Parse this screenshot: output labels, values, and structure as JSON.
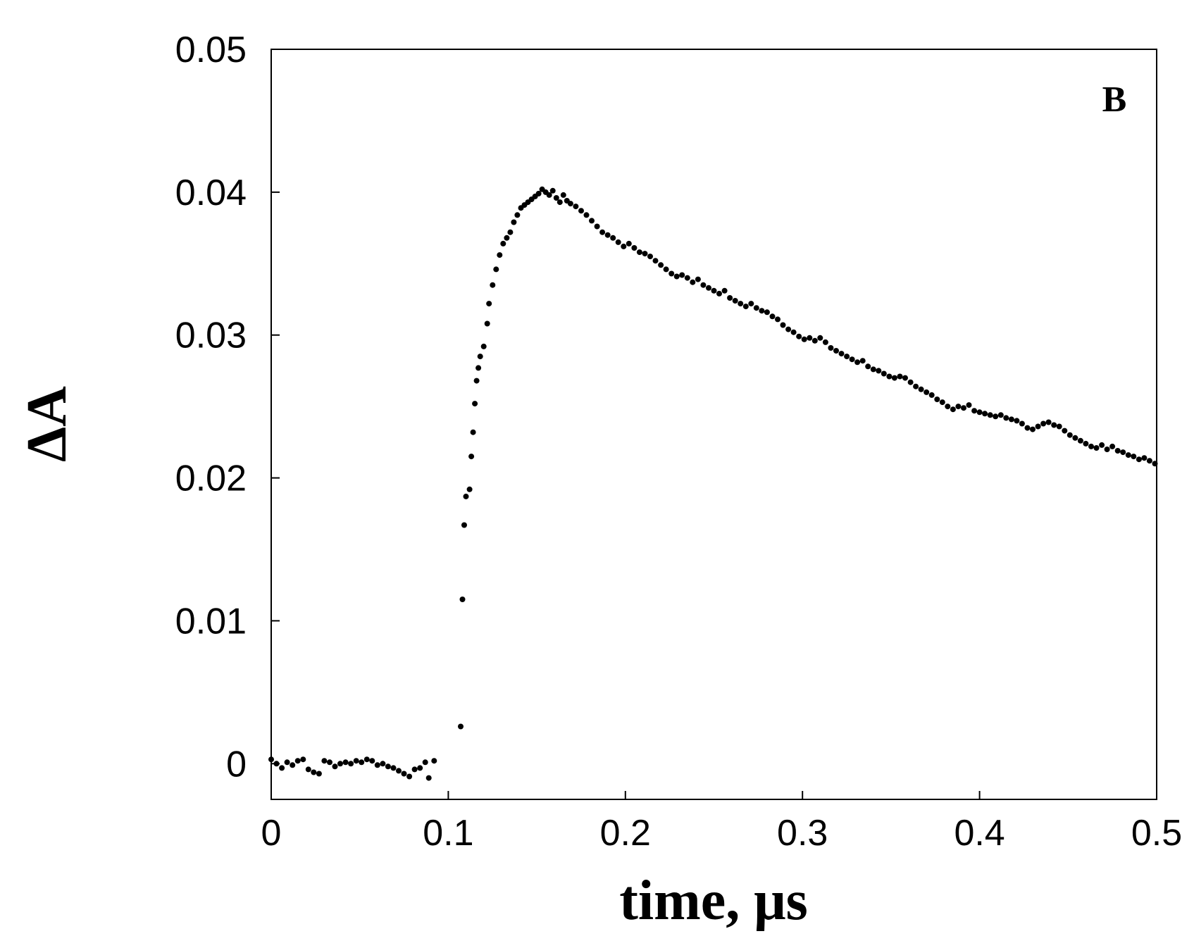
{
  "chart_data": {
    "type": "scatter",
    "title": "",
    "panel_label": "B",
    "xlabel": "time, μs",
    "ylabel": "ΔA",
    "xlim": [
      0,
      0.5
    ],
    "ylim": [
      -0.0025,
      0.05
    ],
    "x_ticks": [
      0,
      0.1,
      0.2,
      0.3,
      0.4,
      0.5
    ],
    "x_tick_labels": [
      "0",
      "0.1",
      "0.2",
      "0.3",
      "0.4",
      "0.5"
    ],
    "y_ticks": [
      0,
      0.01,
      0.02,
      0.03,
      0.04,
      0.05
    ],
    "y_tick_labels": [
      "0",
      "0.01",
      "0.02",
      "0.03",
      "0.04",
      "0.05"
    ],
    "grid": false,
    "legend": "none",
    "marker_color": "#000000",
    "series": [
      {
        "points": [
          [
            0.0,
            0.0003
          ],
          [
            0.003,
            0.0
          ],
          [
            0.006,
            -0.0003
          ],
          [
            0.009,
            0.0001
          ],
          [
            0.012,
            -0.0001
          ],
          [
            0.015,
            0.0002
          ],
          [
            0.018,
            0.0003
          ],
          [
            0.021,
            -0.0004
          ],
          [
            0.024,
            -0.0006
          ],
          [
            0.027,
            -0.0007
          ],
          [
            0.03,
            0.0002
          ],
          [
            0.033,
            0.0001
          ],
          [
            0.036,
            -0.0002
          ],
          [
            0.039,
            0.0
          ],
          [
            0.042,
            0.0001
          ],
          [
            0.045,
            0.0
          ],
          [
            0.048,
            0.0002
          ],
          [
            0.051,
            0.0001
          ],
          [
            0.054,
            0.0003
          ],
          [
            0.057,
            0.0002
          ],
          [
            0.06,
            -0.0001
          ],
          [
            0.063,
            0.0
          ],
          [
            0.066,
            -0.0002
          ],
          [
            0.069,
            -0.0003
          ],
          [
            0.072,
            -0.0005
          ],
          [
            0.075,
            -0.0007
          ],
          [
            0.078,
            -0.0009
          ],
          [
            0.081,
            -0.0004
          ],
          [
            0.084,
            -0.0003
          ],
          [
            0.087,
            0.0001
          ],
          [
            0.089,
            -0.001
          ],
          [
            0.092,
            0.0002
          ],
          [
            0.107,
            0.0026
          ],
          [
            0.108,
            0.0115
          ],
          [
            0.109,
            0.0167
          ],
          [
            0.11,
            0.0187
          ],
          [
            0.112,
            0.0192
          ],
          [
            0.113,
            0.0215
          ],
          [
            0.114,
            0.0232
          ],
          [
            0.115,
            0.0252
          ],
          [
            0.116,
            0.0268
          ],
          [
            0.117,
            0.0277
          ],
          [
            0.118,
            0.0285
          ],
          [
            0.12,
            0.0292
          ],
          [
            0.122,
            0.0308
          ],
          [
            0.123,
            0.0322
          ],
          [
            0.125,
            0.0335
          ],
          [
            0.127,
            0.0346
          ],
          [
            0.129,
            0.0356
          ],
          [
            0.131,
            0.0364
          ],
          [
            0.133,
            0.0368
          ],
          [
            0.135,
            0.0372
          ],
          [
            0.137,
            0.0379
          ],
          [
            0.139,
            0.0384
          ],
          [
            0.141,
            0.0389
          ],
          [
            0.143,
            0.0391
          ],
          [
            0.145,
            0.0393
          ],
          [
            0.147,
            0.0395
          ],
          [
            0.149,
            0.0397
          ],
          [
            0.151,
            0.0399
          ],
          [
            0.153,
            0.0402
          ],
          [
            0.155,
            0.04
          ],
          [
            0.157,
            0.0398
          ],
          [
            0.159,
            0.0401
          ],
          [
            0.161,
            0.0396
          ],
          [
            0.163,
            0.0393
          ],
          [
            0.165,
            0.0398
          ],
          [
            0.167,
            0.0394
          ],
          [
            0.169,
            0.0392
          ],
          [
            0.172,
            0.039
          ],
          [
            0.175,
            0.0387
          ],
          [
            0.178,
            0.0384
          ],
          [
            0.181,
            0.038
          ],
          [
            0.184,
            0.0376
          ],
          [
            0.187,
            0.0372
          ],
          [
            0.19,
            0.037
          ],
          [
            0.193,
            0.0368
          ],
          [
            0.196,
            0.0365
          ],
          [
            0.199,
            0.0362
          ],
          [
            0.202,
            0.0364
          ],
          [
            0.205,
            0.0361
          ],
          [
            0.208,
            0.0358
          ],
          [
            0.211,
            0.0357
          ],
          [
            0.214,
            0.0355
          ],
          [
            0.217,
            0.0352
          ],
          [
            0.22,
            0.0349
          ],
          [
            0.223,
            0.0346
          ],
          [
            0.226,
            0.0343
          ],
          [
            0.229,
            0.0341
          ],
          [
            0.232,
            0.0342
          ],
          [
            0.235,
            0.034
          ],
          [
            0.238,
            0.0337
          ],
          [
            0.241,
            0.0339
          ],
          [
            0.244,
            0.0335
          ],
          [
            0.247,
            0.0333
          ],
          [
            0.25,
            0.0331
          ],
          [
            0.253,
            0.0329
          ],
          [
            0.256,
            0.0331
          ],
          [
            0.259,
            0.0326
          ],
          [
            0.262,
            0.0324
          ],
          [
            0.265,
            0.0322
          ],
          [
            0.268,
            0.032
          ],
          [
            0.271,
            0.0322
          ],
          [
            0.274,
            0.0319
          ],
          [
            0.277,
            0.0317
          ],
          [
            0.28,
            0.0316
          ],
          [
            0.283,
            0.0313
          ],
          [
            0.286,
            0.0311
          ],
          [
            0.289,
            0.0307
          ],
          [
            0.292,
            0.0304
          ],
          [
            0.295,
            0.0302
          ],
          [
            0.298,
            0.0299
          ],
          [
            0.301,
            0.0297
          ],
          [
            0.304,
            0.0298
          ],
          [
            0.307,
            0.0296
          ],
          [
            0.31,
            0.0298
          ],
          [
            0.313,
            0.0295
          ],
          [
            0.316,
            0.0291
          ],
          [
            0.319,
            0.0289
          ],
          [
            0.322,
            0.0287
          ],
          [
            0.325,
            0.0285
          ],
          [
            0.328,
            0.0283
          ],
          [
            0.331,
            0.0281
          ],
          [
            0.334,
            0.0282
          ],
          [
            0.337,
            0.0278
          ],
          [
            0.34,
            0.0276
          ],
          [
            0.343,
            0.0275
          ],
          [
            0.346,
            0.0273
          ],
          [
            0.349,
            0.0271
          ],
          [
            0.352,
            0.027
          ],
          [
            0.355,
            0.0271
          ],
          [
            0.358,
            0.027
          ],
          [
            0.361,
            0.0267
          ],
          [
            0.364,
            0.0264
          ],
          [
            0.367,
            0.0262
          ],
          [
            0.37,
            0.026
          ],
          [
            0.373,
            0.0258
          ],
          [
            0.376,
            0.0255
          ],
          [
            0.379,
            0.0253
          ],
          [
            0.382,
            0.025
          ],
          [
            0.385,
            0.0248
          ],
          [
            0.388,
            0.025
          ],
          [
            0.391,
            0.0249
          ],
          [
            0.394,
            0.0251
          ],
          [
            0.397,
            0.0247
          ],
          [
            0.4,
            0.0246
          ],
          [
            0.403,
            0.0245
          ],
          [
            0.406,
            0.0244
          ],
          [
            0.409,
            0.0243
          ],
          [
            0.412,
            0.0244
          ],
          [
            0.415,
            0.0242
          ],
          [
            0.418,
            0.0241
          ],
          [
            0.421,
            0.024
          ],
          [
            0.424,
            0.0238
          ],
          [
            0.427,
            0.0235
          ],
          [
            0.43,
            0.0234
          ],
          [
            0.433,
            0.0236
          ],
          [
            0.436,
            0.0238
          ],
          [
            0.439,
            0.0239
          ],
          [
            0.442,
            0.0237
          ],
          [
            0.445,
            0.0236
          ],
          [
            0.448,
            0.0233
          ],
          [
            0.451,
            0.023
          ],
          [
            0.454,
            0.0228
          ],
          [
            0.457,
            0.0226
          ],
          [
            0.46,
            0.0224
          ],
          [
            0.463,
            0.0222
          ],
          [
            0.466,
            0.0221
          ],
          [
            0.469,
            0.0223
          ],
          [
            0.472,
            0.022
          ],
          [
            0.475,
            0.0222
          ],
          [
            0.478,
            0.0219
          ],
          [
            0.481,
            0.0218
          ],
          [
            0.484,
            0.0216
          ],
          [
            0.487,
            0.0215
          ],
          [
            0.49,
            0.0213
          ],
          [
            0.493,
            0.0214
          ],
          [
            0.496,
            0.0212
          ],
          [
            0.499,
            0.021
          ]
        ]
      }
    ]
  }
}
